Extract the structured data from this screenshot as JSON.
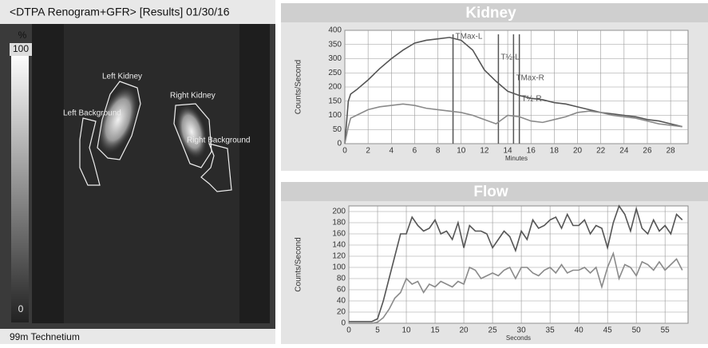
{
  "scan": {
    "header": "<DTPA Renogram+GFR> [Results] 01/30/16",
    "scale_unit": "%",
    "scale_top": "100",
    "scale_bottom": "0",
    "isotope": "99m Technetium",
    "regions": [
      "Left Kidney",
      "Right Kidney",
      "Left Background",
      "Right Background"
    ]
  },
  "chart_data": [
    {
      "type": "line",
      "title": "Kidney",
      "xlabel": "Minutes",
      "ylabel": "Counts/Second",
      "grid": true,
      "xlim": [
        0,
        29.5
      ],
      "xticks": [
        0,
        2,
        4,
        6,
        8,
        10,
        12,
        14,
        16,
        18,
        20,
        22,
        24,
        26,
        28
      ],
      "ylim": [
        0,
        400
      ],
      "yticks": [
        0,
        50,
        100,
        150,
        200,
        250,
        300,
        350,
        400
      ],
      "x": [
        0,
        0.3,
        0.5,
        1,
        2,
        3,
        4,
        5,
        6,
        7,
        8,
        9,
        10,
        11,
        12,
        13,
        14,
        15,
        16,
        17,
        18,
        19,
        20,
        21,
        22,
        23,
        24,
        25,
        26,
        27,
        28,
        29
      ],
      "series": [
        {
          "color": "#555555",
          "values": [
            0,
            150,
            175,
            190,
            225,
            265,
            300,
            330,
            355,
            365,
            370,
            375,
            365,
            330,
            260,
            220,
            185,
            170,
            160,
            155,
            145,
            140,
            130,
            120,
            110,
            105,
            100,
            95,
            85,
            80,
            70,
            60
          ]
        },
        {
          "color": "#8a8a8a",
          "values": [
            0,
            60,
            90,
            100,
            120,
            130,
            135,
            140,
            135,
            125,
            120,
            115,
            110,
            100,
            85,
            70,
            100,
            95,
            80,
            75,
            85,
            95,
            110,
            115,
            110,
            100,
            95,
            90,
            80,
            70,
            65,
            60
          ]
        }
      ],
      "markers": [
        {
          "label": "TMax-L",
          "x": 9.3
        },
        {
          "label": "T½-L",
          "x": 13.2
        },
        {
          "label": "TMax-R",
          "x": 14.5
        },
        {
          "label": "T½-R",
          "x": 15
        }
      ]
    },
    {
      "type": "line",
      "title": "Flow",
      "xlabel": "Seconds",
      "ylabel": "Counts/Second",
      "grid": true,
      "xlim": [
        0,
        59
      ],
      "xticks": [
        0,
        5,
        10,
        15,
        20,
        25,
        30,
        35,
        40,
        45,
        50,
        55
      ],
      "ylim": [
        0,
        210
      ],
      "yticks": [
        0,
        20,
        40,
        60,
        80,
        100,
        120,
        140,
        160,
        180,
        200
      ],
      "x": [
        0,
        1,
        2,
        3,
        4,
        5,
        6,
        7,
        8,
        9,
        10,
        11,
        12,
        13,
        14,
        15,
        16,
        17,
        18,
        19,
        20,
        21,
        22,
        23,
        24,
        25,
        26,
        27,
        28,
        29,
        30,
        31,
        32,
        33,
        34,
        35,
        36,
        37,
        38,
        39,
        40,
        41,
        42,
        43,
        44,
        45,
        46,
        47,
        48,
        49,
        50,
        51,
        52,
        53,
        54,
        55,
        56,
        57,
        58
      ],
      "series": [
        {
          "color": "#555555",
          "values": [
            3,
            3,
            3,
            3,
            3,
            8,
            40,
            80,
            120,
            160,
            160,
            190,
            175,
            165,
            170,
            185,
            160,
            165,
            150,
            180,
            135,
            175,
            165,
            165,
            160,
            135,
            150,
            165,
            155,
            130,
            165,
            150,
            185,
            170,
            175,
            185,
            190,
            170,
            195,
            175,
            175,
            185,
            160,
            175,
            170,
            135,
            180,
            210,
            195,
            165,
            205,
            170,
            160,
            185,
            165,
            175,
            160,
            195,
            185
          ]
        },
        {
          "color": "#8a8a8a",
          "values": [
            0,
            0,
            0,
            0,
            0,
            2,
            10,
            25,
            45,
            55,
            80,
            70,
            75,
            55,
            70,
            65,
            75,
            70,
            65,
            75,
            70,
            100,
            95,
            80,
            85,
            90,
            85,
            95,
            100,
            80,
            100,
            100,
            90,
            85,
            95,
            100,
            90,
            105,
            90,
            95,
            95,
            100,
            90,
            100,
            65,
            100,
            125,
            80,
            105,
            100,
            85,
            110,
            105,
            95,
            110,
            95,
            105,
            115,
            95
          ]
        }
      ]
    }
  ]
}
